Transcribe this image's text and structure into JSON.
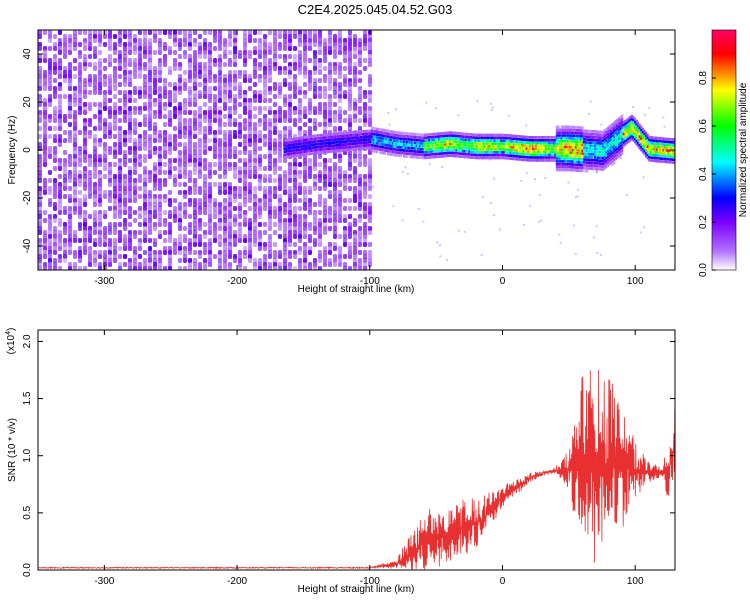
{
  "title": "C2E4.2025.045.04.52.G03",
  "colors": {
    "spectrogram_base": "#7a1ff0",
    "snr_line": "#e83030",
    "axis": "#000000"
  },
  "chart_data": [
    {
      "type": "heatmap",
      "xlabel": "Height of straight line (km)",
      "ylabel": "Frequency (Hz)",
      "xlim": [
        -350,
        130
      ],
      "ylim": [
        -50,
        50
      ],
      "xticks": [
        "-300",
        "-200",
        "-100",
        "0",
        "100"
      ],
      "yticks": [
        "-40",
        "-20",
        "0",
        "20",
        "40"
      ],
      "colorbar": {
        "label": "Normalized spectral amplitude",
        "ticks": [
          "0.0",
          "0.2",
          "0.4",
          "0.6",
          "0.8"
        ],
        "range": [
          0,
          1
        ],
        "colors": [
          "#ffffff",
          "#7b00ff",
          "#0000ff",
          "#00ffff",
          "#00ff00",
          "#ffff00",
          "#ff0000",
          "#ff0066"
        ]
      },
      "noise_region_x": [
        -350,
        -100
      ],
      "ridge": [
        {
          "x": -165,
          "y": 1
        },
        {
          "x": -140,
          "y": 3
        },
        {
          "x": -100,
          "y": 5
        },
        {
          "x": -80,
          "y": 3
        },
        {
          "x": -60,
          "y": 2
        },
        {
          "x": -40,
          "y": 3
        },
        {
          "x": -20,
          "y": 2
        },
        {
          "x": 0,
          "y": 2
        },
        {
          "x": 20,
          "y": 1
        },
        {
          "x": 50,
          "y": 1
        },
        {
          "x": 75,
          "y": 0
        },
        {
          "x": 90,
          "y": 7
        },
        {
          "x": 97,
          "y": 10
        },
        {
          "x": 110,
          "y": 1
        },
        {
          "x": 130,
          "y": 0
        }
      ]
    },
    {
      "type": "line",
      "xlabel": "Height of straight line (km)",
      "ylabel": "SNR (10 * v/v)",
      "scale_label": "(x10",
      "scale_exp": "4",
      "xlim": [
        -350,
        130
      ],
      "ylim": [
        0,
        2.1
      ],
      "xticks": [
        "-300",
        "-200",
        "-100",
        "0",
        "100"
      ],
      "yticks": [
        "0.0",
        "0.5",
        "1.0",
        "1.5",
        "2.0"
      ],
      "series": [
        {
          "x": [
            -350,
            -250,
            -100,
            -80,
            -70,
            -60,
            -50,
            -40,
            -30,
            -20,
            -10,
            0,
            10,
            20,
            30,
            40,
            50,
            55,
            60,
            70,
            80,
            90,
            100,
            110,
            120,
            125,
            130
          ],
          "y": [
            0.02,
            0.02,
            0.02,
            0.05,
            0.12,
            0.25,
            0.28,
            0.3,
            0.38,
            0.4,
            0.5,
            0.65,
            0.72,
            0.8,
            0.85,
            0.87,
            0.88,
            0.9,
            0.9,
            0.92,
            0.9,
            0.88,
            0.88,
            0.86,
            0.85,
            0.88,
            1.1
          ],
          "spread": [
            0,
            0,
            0,
            0.05,
            0.2,
            0.3,
            0.3,
            0.25,
            0.3,
            0.25,
            0.2,
            0.1,
            0.08,
            0.05,
            0.03,
            0.03,
            0.2,
            0.6,
            0.9,
            1.0,
            0.9,
            0.6,
            0.3,
            0.1,
            0.05,
            0.3,
            0.5
          ]
        }
      ]
    }
  ]
}
